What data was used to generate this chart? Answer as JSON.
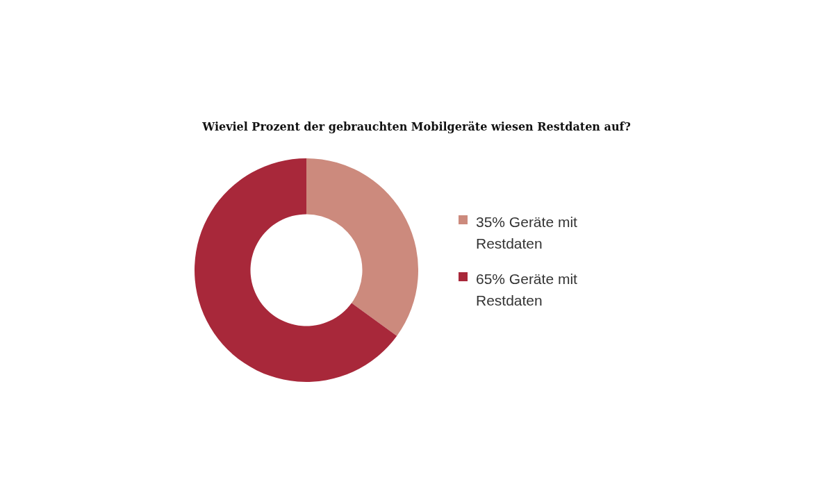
{
  "chart_data": {
    "type": "donut",
    "title": "Wieviel Prozent der gebrauchten Mobilgeräte wiesen Restdaten auf?",
    "categories": [
      "35% Geräte mit Restdaten",
      "65% Geräte mit Restdaten"
    ],
    "values": [
      35,
      65
    ],
    "colors": [
      "#cc8a7d",
      "#a8283a"
    ],
    "legend": "right"
  }
}
